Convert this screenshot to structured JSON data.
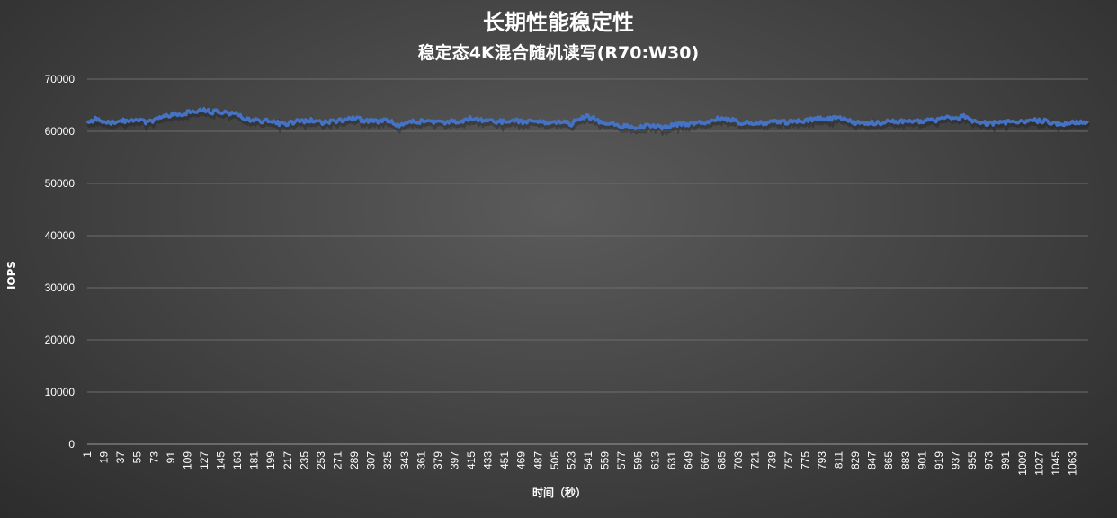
{
  "chart_data": {
    "type": "line",
    "title": "长期性能稳定性",
    "subtitle": "稳定态4K混合随机读写(R70:W30)",
    "xlabel": "时间（秒）",
    "ylabel": "IOPS",
    "ylim": [
      0,
      70000
    ],
    "yticks": [
      "0",
      "10000",
      "20000",
      "30000",
      "40000",
      "50000",
      "60000",
      "70000"
    ],
    "xlim": [
      1,
      1080
    ],
    "xticks": [
      "1",
      "19",
      "37",
      "55",
      "73",
      "91",
      "109",
      "127",
      "145",
      "163",
      "181",
      "199",
      "217",
      "235",
      "253",
      "271",
      "289",
      "307",
      "325",
      "343",
      "361",
      "379",
      "397",
      "415",
      "433",
      "451",
      "469",
      "487",
      "505",
      "523",
      "541",
      "559",
      "577",
      "595",
      "613",
      "631",
      "649",
      "667",
      "685",
      "703",
      "721",
      "739",
      "757",
      "775",
      "793",
      "811",
      "829",
      "847",
      "865",
      "883",
      "901",
      "919",
      "937",
      "955",
      "973",
      "991",
      "1009",
      "1027",
      "1045",
      "1063"
    ],
    "grid": true,
    "color": "#4472C4",
    "series": [
      {
        "x": [
          1,
          10,
          19,
          28,
          37,
          46,
          55,
          64,
          73,
          82,
          91,
          100,
          109,
          118,
          127,
          136,
          145,
          154,
          163,
          172,
          181,
          190,
          199,
          208,
          217,
          226,
          235,
          244,
          253,
          262,
          271,
          280,
          289,
          298,
          307,
          316,
          325,
          334,
          343,
          352,
          361,
          370,
          379,
          388,
          397,
          406,
          415,
          424,
          433,
          442,
          451,
          460,
          469,
          478,
          487,
          496,
          505,
          514,
          523,
          532,
          541,
          550,
          559,
          568,
          577,
          586,
          595,
          604,
          613,
          622,
          631,
          640,
          649,
          658,
          667,
          676,
          685,
          694,
          703,
          712,
          721,
          730,
          739,
          748,
          757,
          766,
          775,
          784,
          793,
          802,
          811,
          820,
          829,
          838,
          847,
          856,
          865,
          874,
          883,
          892,
          901,
          910,
          919,
          928,
          937,
          946,
          955,
          964,
          973,
          982,
          991,
          1000,
          1009,
          1018,
          1027,
          1036,
          1045,
          1054,
          1063,
          1072,
          1080
        ],
        "y": [
          61800,
          62300,
          62000,
          61700,
          62200,
          61900,
          62100,
          61800,
          62000,
          63000,
          63100,
          63300,
          63600,
          63800,
          64000,
          63700,
          63700,
          63400,
          63600,
          62200,
          62100,
          61900,
          62200,
          61500,
          61400,
          61900,
          62000,
          62200,
          61700,
          61800,
          62000,
          62300,
          62600,
          62100,
          62000,
          61800,
          62200,
          61300,
          61200,
          61800,
          61900,
          62000,
          61800,
          61700,
          61900,
          62100,
          62600,
          62200,
          62000,
          61800,
          61900,
          62200,
          61800,
          61800,
          61900,
          61700,
          61800,
          61800,
          61400,
          62700,
          62800,
          62200,
          61400,
          61600,
          61000,
          60900,
          60800,
          61000,
          60900,
          60800,
          61100,
          61400,
          61300,
          61500,
          61800,
          62200,
          62500,
          62300,
          61700,
          61600,
          61700,
          61600,
          61800,
          61700,
          61800,
          62000,
          62100,
          62300,
          62500,
          62400,
          62600,
          62200,
          61700,
          61600,
          61700,
          61500,
          61900,
          61900,
          61900,
          62000,
          62000,
          62100,
          62200,
          62600,
          62400,
          62900,
          62100,
          61800,
          61400,
          61700,
          61700,
          61900,
          61700,
          62100,
          62000,
          61900,
          61500,
          61400,
          61800,
          61700,
          61600
        ]
      }
    ]
  }
}
